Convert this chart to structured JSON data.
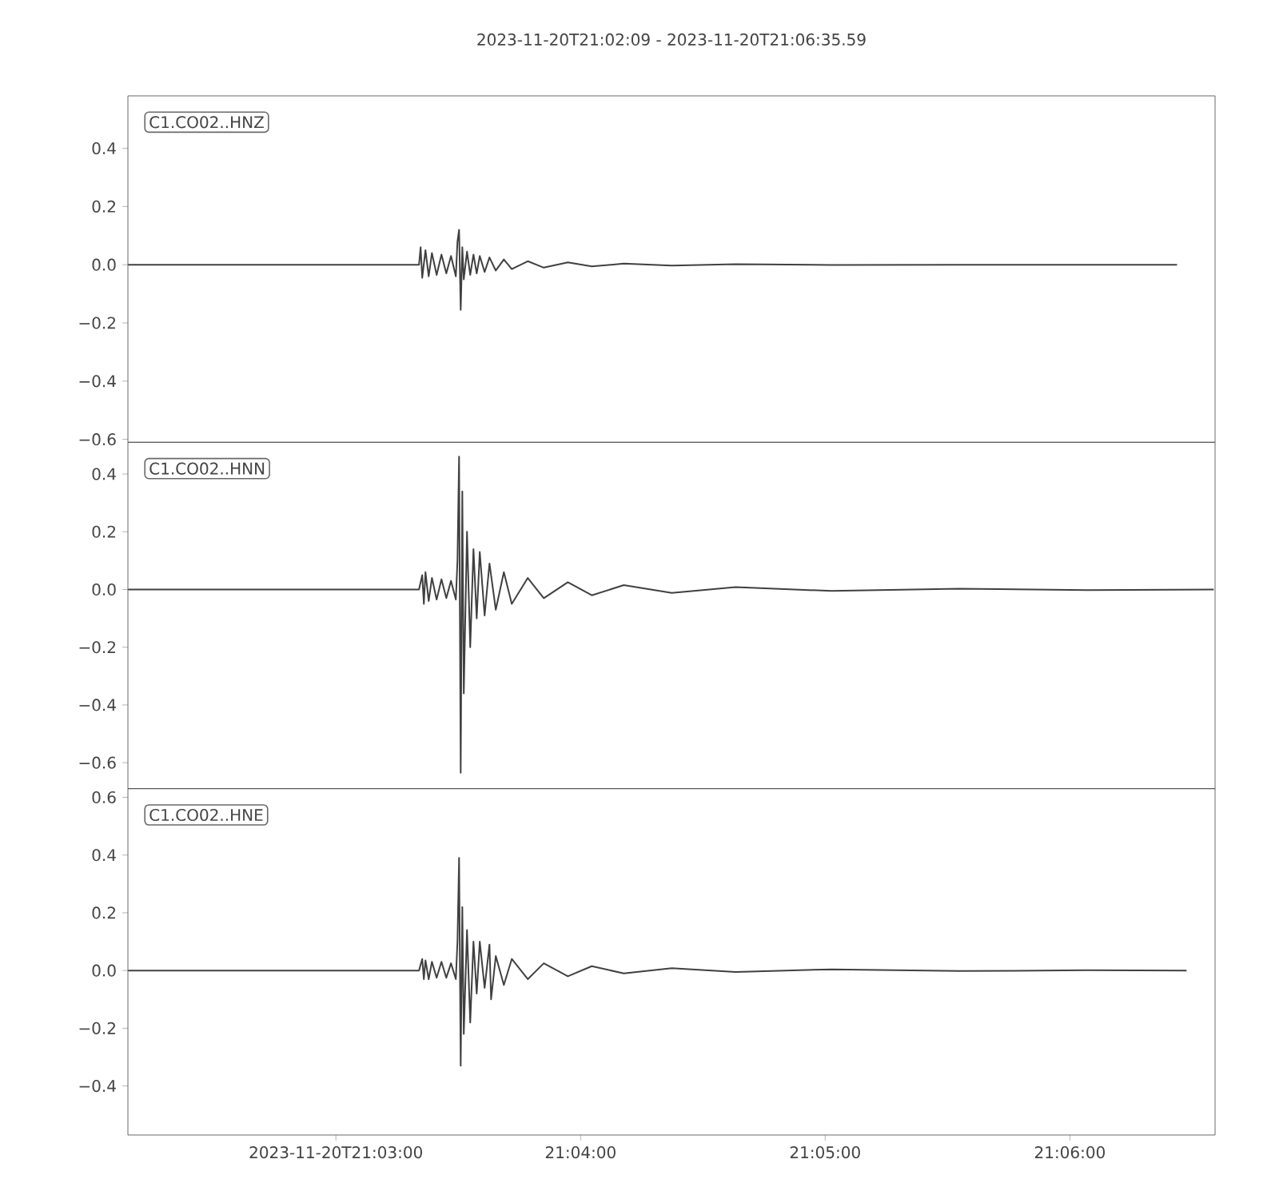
{
  "chart_data": [
    {
      "type": "line",
      "title": "2023-11-20T21:02:09  -  2023-11-20T21:06:35.59",
      "annotations": [
        "C1.CO02..HNZ"
      ],
      "color": "#404040",
      "tick_labels": "y",
      "xlim": [
        21.03583,
        21.10989
      ],
      "ylim": [
        -0.61,
        0.58
      ],
      "yticks": [
        {
          "value": -0.6,
          "label": "−0.6"
        },
        {
          "value": -0.4,
          "label": "−0.4"
        },
        {
          "value": -0.2,
          "label": "−0.2"
        },
        {
          "value": 0,
          "label": "0.0"
        },
        {
          "value": 0.2,
          "label": "0.2"
        },
        {
          "value": 0.4,
          "label": "0.4"
        }
      ],
      "x": [
        21.03584,
        21.05566,
        21.05577,
        21.05588,
        21.0561,
        21.05632,
        21.05654,
        21.05686,
        21.05719,
        21.05752,
        21.05784,
        21.05817,
        21.05828,
        21.05839,
        21.0585,
        21.05861,
        21.05871,
        21.05893,
        21.05915,
        21.05937,
        21.05959,
        21.0598,
        21.06013,
        21.06046,
        21.06089,
        21.06144,
        21.06198,
        21.06307,
        21.06416,
        21.0658,
        21.06743,
        21.06961,
        21.07288,
        21.07723,
        21.08377,
        21.09248,
        21.1073
      ],
      "values": [
        0,
        0,
        0.06,
        -0.045,
        0.05,
        -0.04,
        0.04,
        -0.035,
        0.035,
        -0.03,
        0.03,
        -0.04,
        0.08,
        0.12,
        -0.155,
        0.06,
        -0.05,
        0.045,
        -0.035,
        0.035,
        -0.03,
        0.03,
        -0.025,
        0.025,
        -0.02,
        0.018,
        -0.015,
        0.012,
        -0.01,
        0.008,
        -0.006,
        0.004,
        -0.003,
        0.002,
        -0.001,
        0,
        0
      ]
    },
    {
      "type": "line",
      "annotations": [
        "C1.CO02..HNN"
      ],
      "color": "#404040",
      "tick_labels": "y",
      "xlim": [
        21.03583,
        21.10989
      ],
      "ylim": [
        -0.69,
        0.51
      ],
      "yticks": [
        {
          "value": -0.6,
          "label": "−0.6"
        },
        {
          "value": -0.4,
          "label": "−0.4"
        },
        {
          "value": -0.2,
          "label": "−0.2"
        },
        {
          "value": 0,
          "label": "0.0"
        },
        {
          "value": 0.2,
          "label": "0.2"
        },
        {
          "value": 0.4,
          "label": "0.4"
        }
      ],
      "x": [
        21.03584,
        21.05566,
        21.05588,
        21.05599,
        21.0561,
        21.05632,
        21.05654,
        21.05686,
        21.05719,
        21.05752,
        21.05784,
        21.05817,
        21.05828,
        21.05839,
        21.0585,
        21.05861,
        21.05871,
        21.05893,
        21.05915,
        21.05937,
        21.05959,
        21.0598,
        21.06013,
        21.06046,
        21.06089,
        21.06144,
        21.06198,
        21.06307,
        21.06416,
        21.0658,
        21.06743,
        21.06961,
        21.07288,
        21.07723,
        21.08377,
        21.09248,
        21.1012,
        21.1098
      ],
      "values": [
        0,
        0,
        0.05,
        -0.05,
        0.06,
        -0.04,
        0.04,
        -0.035,
        0.035,
        -0.03,
        0.03,
        -0.035,
        0.1,
        0.46,
        -0.635,
        0.34,
        -0.36,
        0.2,
        -0.2,
        0.14,
        -0.1,
        0.13,
        -0.09,
        0.09,
        -0.07,
        0.06,
        -0.05,
        0.04,
        -0.03,
        0.025,
        -0.02,
        0.015,
        -0.012,
        0.008,
        -0.005,
        0.003,
        -0.002,
        0
      ]
    },
    {
      "type": "line",
      "annotations": [
        "C1.CO02..HNE"
      ],
      "color": "#404040",
      "xlim": [
        21.03583,
        21.10989
      ],
      "ylim": [
        -0.57,
        0.63
      ],
      "xticks": [
        {
          "value": 21.05,
          "label": "2023-11-20T21:03:00"
        },
        {
          "value": 21.06667,
          "label": "21:04:00"
        },
        {
          "value": 21.08333,
          "label": "21:05:00"
        },
        {
          "value": 21.1,
          "label": "21:06:00"
        }
      ],
      "yticks": [
        {
          "value": -0.4,
          "label": "−0.4"
        },
        {
          "value": -0.2,
          "label": "−0.2"
        },
        {
          "value": 0,
          "label": "0.0"
        },
        {
          "value": 0.2,
          "label": "0.2"
        },
        {
          "value": 0.4,
          "label": "0.4"
        },
        {
          "value": 0.6,
          "label": "0.6"
        }
      ],
      "x": [
        21.03584,
        21.05566,
        21.05588,
        21.05599,
        21.0561,
        21.05632,
        21.05654,
        21.05686,
        21.05719,
        21.05752,
        21.05784,
        21.05817,
        21.05828,
        21.05839,
        21.0585,
        21.05861,
        21.05871,
        21.05893,
        21.05915,
        21.05937,
        21.05959,
        21.0598,
        21.06013,
        21.06046,
        21.06057,
        21.06089,
        21.06144,
        21.06198,
        21.06307,
        21.06416,
        21.0658,
        21.06743,
        21.06961,
        21.07288,
        21.07723,
        21.08377,
        21.09248,
        21.1012,
        21.10795
      ],
      "values": [
        0,
        0,
        0.04,
        -0.03,
        0.035,
        -0.03,
        0.03,
        -0.025,
        0.03,
        -0.025,
        0.025,
        -0.03,
        0.1,
        0.39,
        -0.33,
        0.22,
        -0.22,
        0.14,
        -0.18,
        0.1,
        -0.08,
        0.1,
        -0.06,
        0.09,
        -0.1,
        0.05,
        -0.05,
        0.04,
        -0.03,
        0.025,
        -0.02,
        0.015,
        -0.01,
        0.008,
        -0.005,
        0.004,
        -0.002,
        0.001,
        0
      ]
    }
  ]
}
